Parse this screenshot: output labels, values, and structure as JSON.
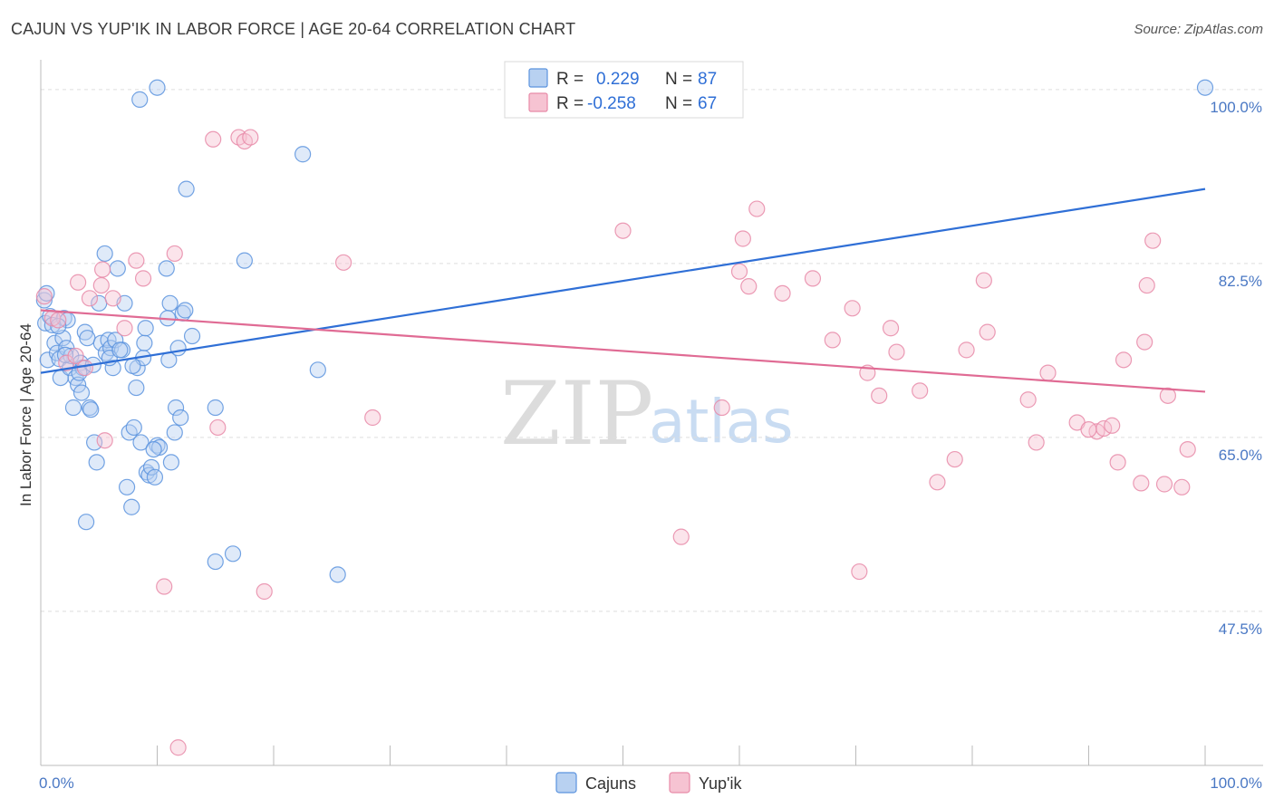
{
  "title": "CAJUN VS YUP'IK IN LABOR FORCE | AGE 20-64 CORRELATION CHART",
  "source": "Source: ZipAtlas.com",
  "watermark": {
    "zip": "ZIP",
    "atlas": "atlas"
  },
  "colors": {
    "cajun": "#5b93de",
    "cajun_fill": "#b8d1f1",
    "cajun_line": "#2f6fd6",
    "yupik": "#e88aa8",
    "yupik_fill": "#f6c3d2",
    "yupik_line": "#e06b94",
    "grid": "#dddddd",
    "axis_text": "#4a78c4"
  },
  "legend": {
    "rows": [
      {
        "r_label": "R =",
        "r_value": "0.229",
        "n_label": "N =",
        "n_value": "87"
      },
      {
        "r_label": "R =",
        "r_value": "-0.258",
        "n_label": "N =",
        "n_value": "67"
      }
    ]
  },
  "chart_data": {
    "type": "scatter",
    "title": "CAJUN VS YUP'IK IN LABOR FORCE | AGE 20-64 CORRELATION CHART",
    "xlabel": "",
    "ylabel": "In Labor Force | Age 20-64",
    "xlim": [
      0,
      100
    ],
    "ylim": [
      32,
      103
    ],
    "x_tick_labels": [
      "0.0%",
      "100.0%"
    ],
    "y_ticks": [
      47.5,
      65.0,
      82.5,
      100.0
    ],
    "y_tick_labels": [
      "47.5%",
      "65.0%",
      "82.5%",
      "100.0%"
    ],
    "series": [
      {
        "name": "Cajuns",
        "R": 0.229,
        "N": 87,
        "trend": {
          "x": [
            0,
            100
          ],
          "y": [
            71.5,
            90.0
          ]
        },
        "points": [
          [
            0.3,
            78.8
          ],
          [
            0.4,
            76.5
          ],
          [
            0.6,
            72.8
          ],
          [
            0.8,
            77.2
          ],
          [
            1.0,
            76.3
          ],
          [
            1.2,
            74.5
          ],
          [
            1.4,
            73.5
          ],
          [
            1.6,
            72.9
          ],
          [
            1.7,
            71.0
          ],
          [
            1.9,
            75.0
          ],
          [
            2.0,
            77.0
          ],
          [
            2.2,
            74.0
          ],
          [
            2.3,
            76.8
          ],
          [
            2.5,
            72.0
          ],
          [
            2.6,
            73.2
          ],
          [
            2.8,
            68.0
          ],
          [
            3.0,
            71.0
          ],
          [
            3.2,
            70.3
          ],
          [
            3.4,
            72.5
          ],
          [
            3.5,
            69.5
          ],
          [
            3.6,
            72.0
          ],
          [
            3.8,
            75.6
          ],
          [
            4.0,
            75.0
          ],
          [
            3.9,
            56.5
          ],
          [
            4.2,
            68.0
          ],
          [
            4.3,
            67.8
          ],
          [
            4.5,
            72.3
          ],
          [
            4.6,
            64.5
          ],
          [
            4.8,
            62.5
          ],
          [
            5.0,
            78.5
          ],
          [
            5.2,
            74.5
          ],
          [
            5.5,
            83.5
          ],
          [
            5.6,
            73.5
          ],
          [
            5.8,
            74.8
          ],
          [
            6.0,
            74.0
          ],
          [
            6.2,
            72.0
          ],
          [
            6.4,
            74.8
          ],
          [
            6.6,
            82.0
          ],
          [
            7.0,
            73.8
          ],
          [
            7.2,
            78.5
          ],
          [
            7.4,
            60.0
          ],
          [
            7.6,
            65.5
          ],
          [
            7.8,
            58.0
          ],
          [
            8.0,
            66.0
          ],
          [
            8.2,
            70.0
          ],
          [
            8.3,
            72.0
          ],
          [
            8.5,
            99.0
          ],
          [
            8.6,
            64.5
          ],
          [
            8.8,
            73.0
          ],
          [
            8.9,
            74.5
          ],
          [
            9.0,
            76.0
          ],
          [
            9.1,
            61.5
          ],
          [
            9.3,
            61.2
          ],
          [
            9.5,
            62.0
          ],
          [
            9.8,
            61.0
          ],
          [
            10.0,
            64.2
          ],
          [
            10.2,
            64.0
          ],
          [
            10.0,
            100.2
          ],
          [
            10.8,
            82.0
          ],
          [
            11.0,
            72.8
          ],
          [
            11.1,
            78.5
          ],
          [
            11.2,
            62.5
          ],
          [
            11.5,
            65.5
          ],
          [
            11.6,
            68.0
          ],
          [
            11.8,
            74.0
          ],
          [
            12.0,
            67.0
          ],
          [
            12.2,
            77.5
          ],
          [
            12.4,
            77.8
          ],
          [
            12.5,
            90.0
          ],
          [
            13.0,
            75.2
          ],
          [
            15.0,
            68.0
          ],
          [
            15.0,
            52.5
          ],
          [
            16.5,
            53.3
          ],
          [
            17.5,
            82.8
          ],
          [
            22.5,
            93.5
          ],
          [
            23.8,
            71.8
          ],
          [
            25.5,
            51.2
          ],
          [
            100.0,
            100.2
          ],
          [
            0.5,
            79.5
          ],
          [
            1.5,
            76.2
          ],
          [
            2.1,
            73.3
          ],
          [
            3.3,
            71.5
          ],
          [
            5.9,
            73.0
          ],
          [
            6.8,
            73.8
          ],
          [
            7.9,
            72.2
          ],
          [
            9.7,
            63.8
          ],
          [
            10.9,
            77.0
          ]
        ]
      },
      {
        "name": "Yup'ik",
        "R": -0.258,
        "N": 67,
        "trend": {
          "x": [
            0,
            100
          ],
          "y": [
            77.8,
            69.6
          ]
        },
        "points": [
          [
            0.3,
            79.2
          ],
          [
            1.0,
            77.0
          ],
          [
            1.5,
            76.8
          ],
          [
            2.2,
            72.5
          ],
          [
            3.0,
            73.2
          ],
          [
            3.2,
            80.6
          ],
          [
            3.8,
            72.0
          ],
          [
            4.2,
            79.0
          ],
          [
            5.2,
            80.3
          ],
          [
            5.5,
            64.7
          ],
          [
            5.3,
            81.9
          ],
          [
            6.2,
            79.0
          ],
          [
            7.2,
            76.0
          ],
          [
            8.2,
            82.8
          ],
          [
            8.8,
            81.0
          ],
          [
            10.6,
            50.0
          ],
          [
            11.5,
            83.5
          ],
          [
            11.8,
            33.8
          ],
          [
            14.8,
            95.0
          ],
          [
            15.2,
            66.0
          ],
          [
            17.0,
            95.2
          ],
          [
            17.5,
            94.8
          ],
          [
            18.0,
            95.2
          ],
          [
            19.2,
            49.5
          ],
          [
            26.0,
            82.6
          ],
          [
            28.5,
            67.0
          ],
          [
            41.5,
            100.2
          ],
          [
            50.0,
            85.8
          ],
          [
            55.0,
            55.0
          ],
          [
            58.5,
            68.0
          ],
          [
            60.0,
            81.7
          ],
          [
            60.3,
            85.0
          ],
          [
            60.8,
            80.2
          ],
          [
            61.5,
            88.0
          ],
          [
            63.7,
            79.5
          ],
          [
            66.3,
            81.0
          ],
          [
            68.0,
            74.8
          ],
          [
            69.7,
            78.0
          ],
          [
            70.3,
            51.5
          ],
          [
            71.0,
            71.5
          ],
          [
            72.0,
            69.2
          ],
          [
            73.0,
            76.0
          ],
          [
            73.5,
            73.6
          ],
          [
            75.5,
            69.7
          ],
          [
            77.0,
            60.5
          ],
          [
            78.5,
            62.8
          ],
          [
            79.5,
            73.8
          ],
          [
            81.0,
            80.8
          ],
          [
            81.3,
            75.6
          ],
          [
            84.8,
            68.8
          ],
          [
            85.5,
            64.5
          ],
          [
            86.5,
            71.5
          ],
          [
            89.0,
            66.5
          ],
          [
            90.7,
            65.6
          ],
          [
            91.3,
            65.9
          ],
          [
            92.0,
            66.2
          ],
          [
            93.0,
            72.8
          ],
          [
            94.5,
            60.4
          ],
          [
            94.8,
            74.6
          ],
          [
            95.0,
            80.3
          ],
          [
            95.5,
            84.8
          ],
          [
            96.5,
            60.3
          ],
          [
            96.8,
            69.2
          ],
          [
            98.0,
            60.0
          ],
          [
            98.5,
            63.8
          ],
          [
            92.5,
            62.5
          ],
          [
            90.0,
            65.8
          ]
        ]
      }
    ],
    "legend": [
      {
        "name": "Cajuns",
        "color": "#5b93de"
      },
      {
        "name": "Yup'ik",
        "color": "#e88aa8"
      }
    ]
  }
}
